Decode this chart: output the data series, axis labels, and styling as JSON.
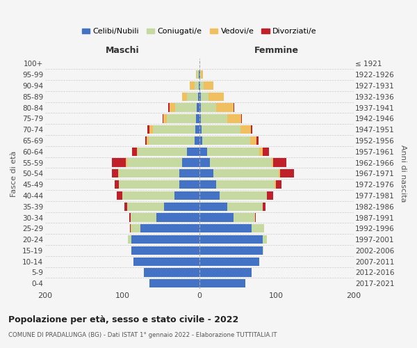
{
  "age_groups": [
    "100+",
    "95-99",
    "90-94",
    "85-89",
    "80-84",
    "75-79",
    "70-74",
    "65-69",
    "60-64",
    "55-59",
    "50-54",
    "45-49",
    "40-44",
    "35-39",
    "30-34",
    "25-29",
    "20-24",
    "15-19",
    "10-14",
    "5-9",
    "0-4"
  ],
  "birth_years": [
    "≤ 1921",
    "1922-1926",
    "1927-1931",
    "1932-1936",
    "1937-1941",
    "1942-1946",
    "1947-1951",
    "1952-1956",
    "1957-1961",
    "1962-1966",
    "1967-1971",
    "1972-1976",
    "1977-1981",
    "1982-1986",
    "1987-1991",
    "1992-1996",
    "1997-2001",
    "2002-2006",
    "2007-2011",
    "2012-2016",
    "2017-2021"
  ],
  "males": {
    "celibi": [
      0,
      1,
      1,
      2,
      3,
      4,
      5,
      6,
      16,
      22,
      26,
      26,
      32,
      46,
      56,
      76,
      88,
      88,
      85,
      72,
      65
    ],
    "coniugati": [
      0,
      2,
      5,
      14,
      28,
      38,
      55,
      60,
      64,
      72,
      78,
      78,
      68,
      48,
      33,
      12,
      5,
      0,
      0,
      0,
      0
    ],
    "vedovi": [
      0,
      1,
      6,
      6,
      8,
      5,
      5,
      2,
      1,
      1,
      1,
      0,
      0,
      0,
      0,
      1,
      0,
      0,
      0,
      0,
      0
    ],
    "divorziati": [
      0,
      0,
      0,
      0,
      1,
      1,
      2,
      2,
      6,
      18,
      8,
      6,
      7,
      3,
      2,
      1,
      0,
      0,
      0,
      0,
      0
    ]
  },
  "females": {
    "nubili": [
      0,
      1,
      1,
      2,
      2,
      2,
      3,
      4,
      10,
      14,
      18,
      22,
      26,
      36,
      44,
      68,
      82,
      82,
      78,
      68,
      60
    ],
    "coniugate": [
      0,
      1,
      5,
      10,
      20,
      34,
      50,
      62,
      68,
      80,
      85,
      76,
      62,
      46,
      28,
      16,
      6,
      1,
      0,
      0,
      0
    ],
    "vedove": [
      0,
      3,
      12,
      20,
      22,
      18,
      14,
      8,
      4,
      2,
      2,
      1,
      0,
      0,
      0,
      0,
      0,
      0,
      0,
      0,
      0
    ],
    "divorziate": [
      0,
      0,
      0,
      0,
      1,
      1,
      2,
      3,
      8,
      17,
      18,
      8,
      8,
      4,
      1,
      0,
      0,
      0,
      0,
      0,
      0
    ]
  },
  "colors": {
    "celibi": "#4472C4",
    "coniugati": "#C5D9A0",
    "vedovi": "#F0C060",
    "divorziati": "#C0202A"
  },
  "xlim": 200,
  "title": "Popolazione per età, sesso e stato civile - 2022",
  "subtitle": "COMUNE DI PRADALUNGA (BG) - Dati ISTAT 1° gennaio 2022 - Elaborazione TUTTITALIA.IT",
  "ylabel_left": "Fasce di età",
  "ylabel_right": "Anni di nascita",
  "xlabel_left": "Maschi",
  "xlabel_right": "Femmine",
  "legend_labels": [
    "Celibi/Nubili",
    "Coniugati/e",
    "Vedovi/e",
    "Divorziati/e"
  ],
  "background_color": "#f5f5f5"
}
